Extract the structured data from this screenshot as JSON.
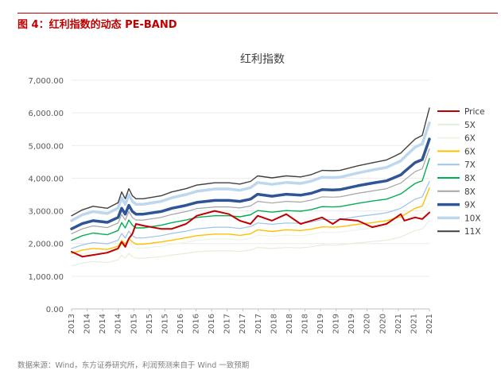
{
  "figure": {
    "heading": "图 4：红利指数的动态 PE-BAND",
    "source": "数据来源：Wind，东方证券研究所，利润预测来自于 Wind 一致预期"
  },
  "chart_data": {
    "type": "line",
    "title": "红利指数",
    "xlabel": "",
    "ylabel": "",
    "ylim": [
      0,
      7000
    ],
    "yticks": [
      "0.00",
      "1,000.00",
      "2,000.00",
      "3,000.00",
      "4,000.00",
      "5,000.00",
      "6,000.00",
      "7,000.00"
    ],
    "xticks": [
      "2013",
      "2014",
      "2014",
      "2014",
      "2015",
      "2015",
      "2015",
      "2016",
      "2016",
      "2016",
      "2017",
      "2017",
      "2017",
      "2018",
      "2018",
      "2018",
      "2019",
      "2019",
      "2019",
      "2020",
      "2020",
      "2021",
      "2021",
      "2021"
    ],
    "x": [
      0,
      3,
      6,
      10,
      13,
      14,
      15,
      16,
      17,
      18,
      20,
      25,
      28,
      32,
      35,
      40,
      44,
      47,
      50,
      52,
      56,
      60,
      64,
      67,
      70,
      73,
      75,
      80,
      84,
      88,
      90,
      92,
      93,
      96,
      98,
      100
    ],
    "series": [
      {
        "name": "Price",
        "color": "#c00000",
        "width": 2,
        "values": [
          1750,
          1600,
          1650,
          1720,
          1850,
          2050,
          1900,
          2150,
          2300,
          2600,
          2550,
          2450,
          2450,
          2600,
          2850,
          3000,
          2900,
          2700,
          2600,
          2850,
          2700,
          2900,
          2600,
          2700,
          2800,
          2600,
          2750,
          2700,
          2500,
          2600,
          2750,
          2900,
          2700,
          2800,
          2750,
          2950
        ]
      },
      {
        "name": "5X",
        "color": "#e2efda",
        "width": 1.2,
        "values": [
          1320,
          1400,
          1450,
          1420,
          1500,
          1650,
          1550,
          1700,
          1600,
          1550,
          1550,
          1600,
          1650,
          1700,
          1750,
          1780,
          1780,
          1760,
          1800,
          1880,
          1850,
          1880,
          1870,
          1900,
          1960,
          1950,
          1960,
          2020,
          2060,
          2100,
          2150,
          2200,
          2250,
          2400,
          2450,
          2700
        ]
      },
      {
        "name": "6X",
        "color": "#eef4e8",
        "width": 1.2,
        "values": [
          1580,
          1680,
          1740,
          1700,
          1800,
          1980,
          1860,
          2040,
          1920,
          1860,
          1860,
          1920,
          1980,
          2040,
          2100,
          2140,
          2140,
          2110,
          2160,
          2260,
          2220,
          2260,
          2240,
          2280,
          2350,
          2340,
          2350,
          2420,
          2470,
          2520,
          2580,
          2640,
          2700,
          2880,
          2940,
          3240
        ]
      },
      {
        "name": "6X",
        "color": "#ffc000",
        "width": 1.4,
        "values": [
          1700,
          1800,
          1850,
          1820,
          1920,
          2100,
          1980,
          2150,
          2050,
          1980,
          1980,
          2050,
          2100,
          2180,
          2240,
          2290,
          2290,
          2250,
          2300,
          2420,
          2370,
          2420,
          2400,
          2440,
          2510,
          2500,
          2510,
          2590,
          2640,
          2700,
          2760,
          2820,
          2880,
          3080,
          3150,
          3700
        ]
      },
      {
        "name": "7X",
        "color": "#9dc3e6",
        "width": 1.2,
        "values": [
          1850,
          1960,
          2030,
          1990,
          2100,
          2310,
          2170,
          2380,
          2240,
          2170,
          2170,
          2240,
          2310,
          2380,
          2450,
          2500,
          2500,
          2460,
          2520,
          2630,
          2590,
          2630,
          2620,
          2660,
          2740,
          2730,
          2740,
          2830,
          2880,
          2940,
          3010,
          3080,
          3150,
          3360,
          3430,
          3900
        ]
      },
      {
        "name": "8X",
        "color": "#00b050",
        "width": 1.4,
        "values": [
          2100,
          2240,
          2320,
          2270,
          2400,
          2640,
          2480,
          2720,
          2560,
          2480,
          2480,
          2560,
          2640,
          2720,
          2800,
          2850,
          2850,
          2820,
          2880,
          3010,
          2960,
          3010,
          2990,
          3040,
          3130,
          3120,
          3130,
          3230,
          3300,
          3360,
          3440,
          3520,
          3600,
          3840,
          3920,
          4600
        ]
      },
      {
        "name": "8X",
        "color": "#a5a5a5",
        "width": 1.2,
        "values": [
          2300,
          2450,
          2540,
          2490,
          2630,
          2890,
          2720,
          2980,
          2800,
          2720,
          2720,
          2800,
          2890,
          2980,
          3070,
          3120,
          3120,
          3090,
          3150,
          3290,
          3240,
          3290,
          3270,
          3330,
          3430,
          3420,
          3430,
          3540,
          3610,
          3680,
          3770,
          3850,
          3940,
          4200,
          4290,
          4900
        ]
      },
      {
        "name": "9X",
        "color": "#2f5597",
        "width": 3.5,
        "values": [
          2450,
          2610,
          2700,
          2650,
          2800,
          3080,
          2900,
          3170,
          2980,
          2900,
          2900,
          2980,
          3080,
          3170,
          3260,
          3320,
          3320,
          3290,
          3360,
          3510,
          3450,
          3510,
          3480,
          3540,
          3650,
          3640,
          3650,
          3770,
          3850,
          3920,
          4010,
          4100,
          4200,
          4480,
          4570,
          5200
        ]
      },
      {
        "name": "10X",
        "color": "#bdd7ee",
        "width": 3.5,
        "values": [
          2700,
          2880,
          2980,
          2920,
          3090,
          3400,
          3200,
          3500,
          3290,
          3200,
          3200,
          3290,
          3400,
          3500,
          3600,
          3670,
          3670,
          3630,
          3710,
          3870,
          3810,
          3870,
          3840,
          3910,
          4030,
          4020,
          4030,
          4160,
          4250,
          4330,
          4430,
          4530,
          4640,
          4950,
          5050,
          5700
        ]
      },
      {
        "name": "11X",
        "color": "#404040",
        "width": 1.4,
        "values": [
          2850,
          3030,
          3140,
          3080,
          3250,
          3580,
          3370,
          3680,
          3460,
          3370,
          3370,
          3460,
          3580,
          3680,
          3790,
          3860,
          3860,
          3820,
          3900,
          4070,
          4010,
          4070,
          4040,
          4110,
          4240,
          4230,
          4240,
          4380,
          4470,
          4560,
          4660,
          4770,
          4880,
          5200,
          5310,
          6150
        ]
      }
    ],
    "legend_position": "right"
  }
}
